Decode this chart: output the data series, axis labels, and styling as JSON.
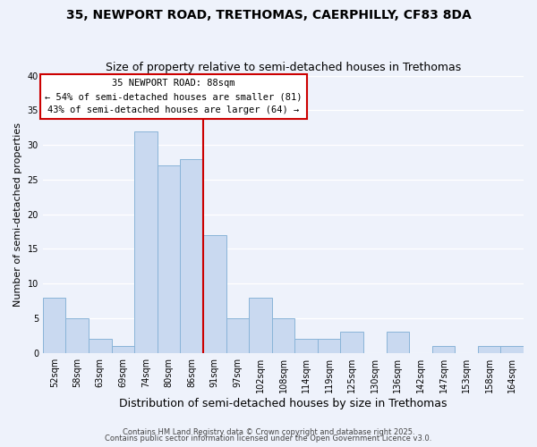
{
  "title": "35, NEWPORT ROAD, TRETHOMAS, CAERPHILLY, CF83 8DA",
  "subtitle": "Size of property relative to semi-detached houses in Trethomas",
  "xlabel": "Distribution of semi-detached houses by size in Trethomas",
  "ylabel": "Number of semi-detached properties",
  "bin_labels": [
    "52sqm",
    "58sqm",
    "63sqm",
    "69sqm",
    "74sqm",
    "80sqm",
    "86sqm",
    "91sqm",
    "97sqm",
    "102sqm",
    "108sqm",
    "114sqm",
    "119sqm",
    "125sqm",
    "130sqm",
    "136sqm",
    "142sqm",
    "147sqm",
    "153sqm",
    "158sqm",
    "164sqm"
  ],
  "bar_values": [
    8,
    5,
    2,
    1,
    32,
    27,
    28,
    17,
    5,
    8,
    5,
    2,
    2,
    3,
    0,
    3,
    0,
    1,
    0,
    1,
    1
  ],
  "bar_color": "#c9d9f0",
  "bar_edge_color": "#8ab4d8",
  "marker_line_color": "#cc0000",
  "annotation_line1": "35 NEWPORT ROAD: 88sqm",
  "annotation_line2": "← 54% of semi-detached houses are smaller (81)",
  "annotation_line3": "43% of semi-detached houses are larger (64) →",
  "ylim": [
    0,
    40
  ],
  "yticks": [
    0,
    5,
    10,
    15,
    20,
    25,
    30,
    35,
    40
  ],
  "bg_color": "#eef2fb",
  "footer1": "Contains HM Land Registry data © Crown copyright and database right 2025.",
  "footer2": "Contains public sector information licensed under the Open Government Licence v3.0.",
  "title_fontsize": 10,
  "subtitle_fontsize": 9,
  "xlabel_fontsize": 9,
  "ylabel_fontsize": 8,
  "tick_fontsize": 7,
  "annotation_fontsize": 7.5,
  "footer_fontsize": 6
}
